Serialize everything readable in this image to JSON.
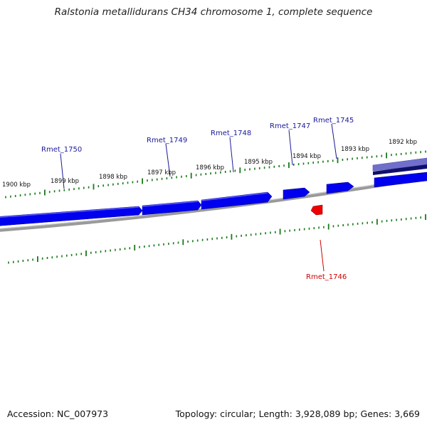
{
  "title": "Ralstonia metallidurans CH34 chromosome 1, complete sequence",
  "footer": {
    "accession_label": "Accession: NC_007973",
    "topology_label": "Topology: circular; Length: 3,928,089 bp; Genes: 3,669"
  },
  "colors": {
    "forward_gene": "#0000ee",
    "reverse_gene": "#ee0000",
    "tick": "#1a7a1a",
    "backbone": "#888888",
    "forward_label": "#1a1a9a",
    "reverse_label": "#cc0000"
  },
  "scale_labels": [
    {
      "id": "1900",
      "text": "1900 kbp"
    },
    {
      "id": "1899",
      "text": "1899 kbp"
    },
    {
      "id": "1898",
      "text": "1898 kbp"
    },
    {
      "id": "1897",
      "text": "1897 kbp"
    },
    {
      "id": "1896",
      "text": "1896 kbp"
    },
    {
      "id": "1895",
      "text": "1895 kbp"
    },
    {
      "id": "1894",
      "text": "1894 kbp"
    },
    {
      "id": "1893",
      "text": "1893 kbp"
    },
    {
      "id": "1892",
      "text": "1892 kbp"
    }
  ],
  "genes": [
    {
      "id": "g1750",
      "name": "Rmet_1750",
      "strand": "forward"
    },
    {
      "id": "g1749",
      "name": "Rmet_1749",
      "strand": "forward"
    },
    {
      "id": "g1748",
      "name": "Rmet_1748",
      "strand": "forward"
    },
    {
      "id": "g1747",
      "name": "Rmet_1747",
      "strand": "forward"
    },
    {
      "id": "g1745",
      "name": "Rmet_1745",
      "strand": "forward"
    },
    {
      "id": "g1746",
      "name": "Rmet_1746",
      "strand": "reverse"
    }
  ]
}
